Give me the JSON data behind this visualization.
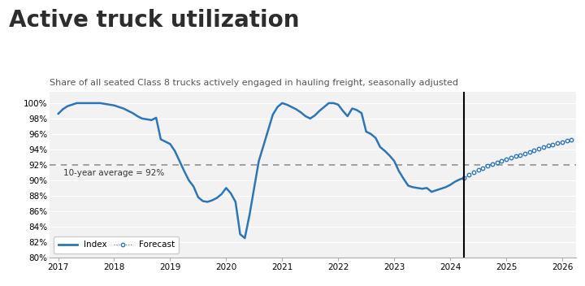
{
  "title": "Active truck utilization",
  "subtitle": "Share of all seated Class 8 trucks actively engaged in hauling freight, seasonally adjusted",
  "avg_label": "10-year average = 92%",
  "avg_value": 92.0,
  "vertical_line_x": 2024.25,
  "ylim": [
    80,
    101.5
  ],
  "yticks": [
    80,
    82,
    84,
    86,
    88,
    90,
    92,
    94,
    96,
    98,
    100
  ],
  "xlim": [
    2016.85,
    2026.25
  ],
  "title_fontsize": 20,
  "subtitle_fontsize": 8,
  "line_color": "#2E75B6",
  "forecast_color": "#2E75B6",
  "avg_line_color": "#888888",
  "index_data": [
    [
      2017.0,
      98.6
    ],
    [
      2017.083,
      99.2
    ],
    [
      2017.167,
      99.6
    ],
    [
      2017.25,
      99.8
    ],
    [
      2017.333,
      100.0
    ],
    [
      2017.417,
      100.0
    ],
    [
      2017.5,
      100.0
    ],
    [
      2017.583,
      100.0
    ],
    [
      2017.667,
      100.0
    ],
    [
      2017.75,
      100.0
    ],
    [
      2017.833,
      99.9
    ],
    [
      2017.917,
      99.8
    ],
    [
      2018.0,
      99.7
    ],
    [
      2018.083,
      99.5
    ],
    [
      2018.167,
      99.3
    ],
    [
      2018.25,
      99.0
    ],
    [
      2018.333,
      98.7
    ],
    [
      2018.417,
      98.3
    ],
    [
      2018.5,
      98.0
    ],
    [
      2018.583,
      97.9
    ],
    [
      2018.667,
      97.8
    ],
    [
      2018.75,
      98.1
    ],
    [
      2018.833,
      95.3
    ],
    [
      2018.917,
      95.0
    ],
    [
      2019.0,
      94.7
    ],
    [
      2019.083,
      93.8
    ],
    [
      2019.167,
      92.5
    ],
    [
      2019.25,
      91.2
    ],
    [
      2019.333,
      90.0
    ],
    [
      2019.417,
      89.2
    ],
    [
      2019.5,
      87.8
    ],
    [
      2019.583,
      87.3
    ],
    [
      2019.667,
      87.2
    ],
    [
      2019.75,
      87.4
    ],
    [
      2019.833,
      87.7
    ],
    [
      2019.917,
      88.2
    ],
    [
      2020.0,
      89.0
    ],
    [
      2020.083,
      88.3
    ],
    [
      2020.167,
      87.2
    ],
    [
      2020.25,
      83.0
    ],
    [
      2020.333,
      82.5
    ],
    [
      2020.417,
      85.5
    ],
    [
      2020.5,
      89.0
    ],
    [
      2020.583,
      92.5
    ],
    [
      2020.667,
      94.5
    ],
    [
      2020.75,
      96.5
    ],
    [
      2020.833,
      98.5
    ],
    [
      2020.917,
      99.5
    ],
    [
      2021.0,
      100.0
    ],
    [
      2021.083,
      99.8
    ],
    [
      2021.167,
      99.5
    ],
    [
      2021.25,
      99.2
    ],
    [
      2021.333,
      98.8
    ],
    [
      2021.417,
      98.3
    ],
    [
      2021.5,
      98.0
    ],
    [
      2021.583,
      98.4
    ],
    [
      2021.667,
      99.0
    ],
    [
      2021.75,
      99.5
    ],
    [
      2021.833,
      100.0
    ],
    [
      2021.917,
      100.0
    ],
    [
      2022.0,
      99.8
    ],
    [
      2022.083,
      99.0
    ],
    [
      2022.167,
      98.3
    ],
    [
      2022.25,
      99.3
    ],
    [
      2022.333,
      99.1
    ],
    [
      2022.417,
      98.7
    ],
    [
      2022.5,
      96.3
    ],
    [
      2022.583,
      96.0
    ],
    [
      2022.667,
      95.5
    ],
    [
      2022.75,
      94.3
    ],
    [
      2022.833,
      93.8
    ],
    [
      2022.917,
      93.2
    ],
    [
      2023.0,
      92.5
    ],
    [
      2023.083,
      91.2
    ],
    [
      2023.167,
      90.2
    ],
    [
      2023.25,
      89.3
    ],
    [
      2023.333,
      89.1
    ],
    [
      2023.417,
      89.0
    ],
    [
      2023.5,
      88.9
    ],
    [
      2023.583,
      89.0
    ],
    [
      2023.667,
      88.5
    ],
    [
      2023.75,
      88.7
    ],
    [
      2023.833,
      88.9
    ],
    [
      2023.917,
      89.1
    ],
    [
      2024.0,
      89.4
    ],
    [
      2024.083,
      89.8
    ],
    [
      2024.167,
      90.1
    ],
    [
      2024.25,
      90.3
    ]
  ],
  "forecast_data": [
    [
      2024.25,
      90.3
    ],
    [
      2024.333,
      90.7
    ],
    [
      2024.417,
      91.0
    ],
    [
      2024.5,
      91.3
    ],
    [
      2024.583,
      91.6
    ],
    [
      2024.667,
      91.9
    ],
    [
      2024.75,
      92.1
    ],
    [
      2024.833,
      92.3
    ],
    [
      2024.917,
      92.5
    ],
    [
      2025.0,
      92.7
    ],
    [
      2025.083,
      92.9
    ],
    [
      2025.167,
      93.1
    ],
    [
      2025.25,
      93.3
    ],
    [
      2025.333,
      93.5
    ],
    [
      2025.417,
      93.7
    ],
    [
      2025.5,
      93.9
    ],
    [
      2025.583,
      94.1
    ],
    [
      2025.667,
      94.3
    ],
    [
      2025.75,
      94.5
    ],
    [
      2025.833,
      94.6
    ],
    [
      2025.917,
      94.8
    ],
    [
      2026.0,
      94.9
    ],
    [
      2026.083,
      95.1
    ],
    [
      2026.167,
      95.2
    ]
  ],
  "legend_index_label": "Index",
  "legend_forecast_label": "Forecast",
  "background_color": "#FFFFFF",
  "plot_bg_color": "#F2F2F2"
}
